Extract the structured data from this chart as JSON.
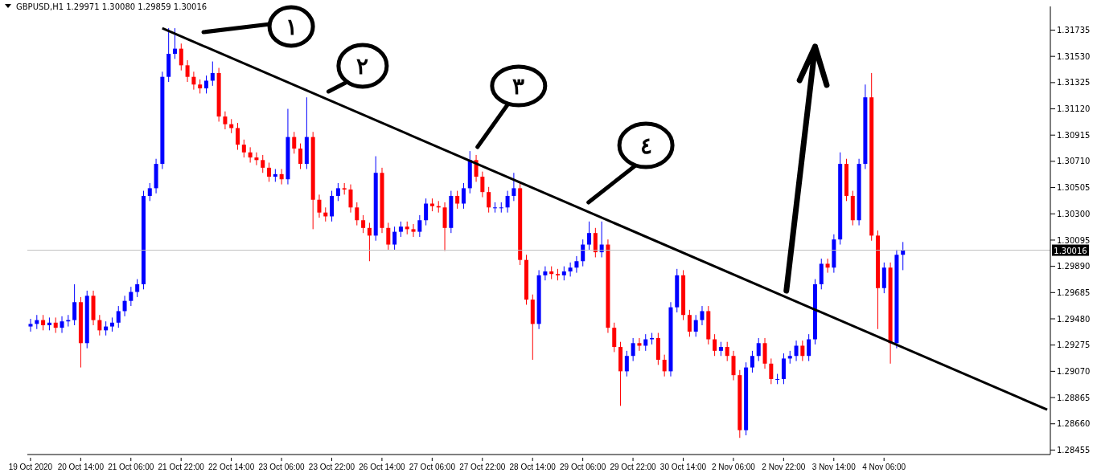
{
  "chart_data": {
    "type": "candlestick",
    "title": "GBPUSD,H1 1.29971 1.30080 1.29859 1.30016",
    "categories": [
      "19 Oct 2020",
      null,
      null,
      null,
      null,
      null,
      null,
      null,
      "20 Oct 14:00",
      null,
      null,
      null,
      null,
      null,
      null,
      null,
      "21 Oct 06:00",
      null,
      null,
      null,
      null,
      null,
      null,
      null,
      "21 Oct 22:00",
      null,
      null,
      null,
      null,
      null,
      null,
      null,
      "22 Oct 14:00",
      null,
      null,
      null,
      null,
      null,
      null,
      null,
      "23 Oct 06:00",
      null,
      null,
      null,
      null,
      null,
      null,
      null,
      "23 Oct 22:00",
      null,
      null,
      null,
      null,
      null,
      null,
      null,
      "26 Oct 14:00",
      null,
      null,
      null,
      null,
      null,
      null,
      null,
      "27 Oct 06:00",
      null,
      null,
      null,
      null,
      null,
      null,
      null,
      "27 Oct 22:00",
      null,
      null,
      null,
      null,
      null,
      null,
      null,
      "28 Oct 14:00",
      null,
      null,
      null,
      null,
      null,
      null,
      null,
      "29 Oct 06:00",
      null,
      null,
      null,
      null,
      null,
      null,
      null,
      "29 Oct 22:00",
      null,
      null,
      null,
      null,
      null,
      null,
      null,
      "30 Oct 14:00",
      null,
      null,
      null,
      null,
      null,
      null,
      null,
      "2 Nov 06:00",
      null,
      null,
      null,
      null,
      null,
      null,
      null,
      "2 Nov 22:00",
      null,
      null,
      null,
      null,
      null,
      null,
      null,
      "3 Nov 14:00",
      null,
      null,
      null,
      null,
      null,
      null,
      null,
      "4 Nov 06:00",
      null,
      null,
      null,
      null,
      null,
      null,
      null,
      null,
      null,
      null,
      null,
      null,
      null,
      null,
      null,
      null,
      null,
      null,
      null,
      null,
      null,
      null,
      null,
      null,
      null,
      null
    ],
    "ohlc": [
      [
        1.2942,
        1.2948,
        1.2938,
        1.2944
      ],
      [
        1.2944,
        1.2951,
        1.294,
        1.2947
      ],
      [
        1.2947,
        1.2951,
        1.2939,
        1.2943
      ],
      [
        1.2943,
        1.2949,
        1.2939,
        1.2945
      ],
      [
        1.2945,
        1.2949,
        1.2937,
        1.2941
      ],
      [
        1.2941,
        1.295,
        1.2937,
        1.2946
      ],
      [
        1.2946,
        1.2951,
        1.2942,
        1.2947
      ],
      [
        1.2947,
        1.2975,
        1.2943,
        1.2961
      ],
      [
        1.2961,
        1.2965,
        1.291,
        1.2929
      ],
      [
        1.2929,
        1.297,
        1.2925,
        1.2966
      ],
      [
        1.2966,
        1.297,
        1.2943,
        1.2947
      ],
      [
        1.2947,
        1.2951,
        1.2935,
        1.2939
      ],
      [
        1.2939,
        1.2946,
        1.2935,
        1.2942
      ],
      [
        1.2942,
        1.2949,
        1.2938,
        1.2945
      ],
      [
        1.2945,
        1.2958,
        1.2941,
        1.2954
      ],
      [
        1.2954,
        1.2966,
        1.295,
        1.2962
      ],
      [
        1.2962,
        1.2973,
        1.2958,
        1.2969
      ],
      [
        1.2969,
        1.2979,
        1.2965,
        1.2975
      ],
      [
        1.2975,
        1.3048,
        1.2971,
        1.3044
      ],
      [
        1.3044,
        1.3054,
        1.304,
        1.305
      ],
      [
        1.305,
        1.3073,
        1.3046,
        1.3069
      ],
      [
        1.3069,
        1.3141,
        1.3065,
        1.3137
      ],
      [
        1.3137,
        1.3175,
        1.3133,
        1.3155
      ],
      [
        1.3155,
        1.3175,
        1.3151,
        1.3159
      ],
      [
        1.3159,
        1.3163,
        1.3142,
        1.3146
      ],
      [
        1.3146,
        1.315,
        1.3133,
        1.3137
      ],
      [
        1.3137,
        1.3141,
        1.3127,
        1.3131
      ],
      [
        1.3131,
        1.3135,
        1.3124,
        1.3128
      ],
      [
        1.3128,
        1.3138,
        1.3124,
        1.3134
      ],
      [
        1.3134,
        1.3149,
        1.313,
        1.314
      ],
      [
        1.314,
        1.3144,
        1.3102,
        1.3106
      ],
      [
        1.3106,
        1.311,
        1.3096,
        1.31
      ],
      [
        1.31,
        1.3104,
        1.3093,
        1.3097
      ],
      [
        1.3097,
        1.3101,
        1.308,
        1.3084
      ],
      [
        1.3084,
        1.3088,
        1.3074,
        1.3078
      ],
      [
        1.3078,
        1.3082,
        1.307,
        1.3074
      ],
      [
        1.3074,
        1.3078,
        1.3068,
        1.3072
      ],
      [
        1.3072,
        1.3076,
        1.3062,
        1.3066
      ],
      [
        1.3066,
        1.307,
        1.3055,
        1.3059
      ],
      [
        1.3059,
        1.3065,
        1.3055,
        1.3061
      ],
      [
        1.3061,
        1.3065,
        1.3053,
        1.3057
      ],
      [
        1.3057,
        1.3112,
        1.3053,
        1.309
      ],
      [
        1.309,
        1.3094,
        1.3077,
        1.3081
      ],
      [
        1.3081,
        1.3085,
        1.3065,
        1.3069
      ],
      [
        1.3069,
        1.3121,
        1.3065,
        1.309
      ],
      [
        1.309,
        1.3094,
        1.3018,
        1.3041
      ],
      [
        1.3041,
        1.3045,
        1.3027,
        1.3031
      ],
      [
        1.3031,
        1.3035,
        1.3024,
        1.3028
      ],
      [
        1.3028,
        1.3048,
        1.3024,
        1.3044
      ],
      [
        1.3044,
        1.3054,
        1.304,
        1.305
      ],
      [
        1.305,
        1.3054,
        1.3045,
        1.3049
      ],
      [
        1.3049,
        1.3053,
        1.3031,
        1.3035
      ],
      [
        1.3035,
        1.3039,
        1.3021,
        1.3025
      ],
      [
        1.3025,
        1.3029,
        1.3015,
        1.3019
      ],
      [
        1.3019,
        1.3023,
        1.2993,
        1.3013
      ],
      [
        1.3013,
        1.3075,
        1.3009,
        1.3062
      ],
      [
        1.3062,
        1.3066,
        1.3015,
        1.3019
      ],
      [
        1.3019,
        1.3023,
        1.3002,
        1.3006
      ],
      [
        1.3006,
        1.302,
        1.3002,
        1.3016
      ],
      [
        1.3016,
        1.3024,
        1.3012,
        1.302
      ],
      [
        1.302,
        1.3024,
        1.3014,
        1.3018
      ],
      [
        1.3018,
        1.3022,
        1.3012,
        1.3016
      ],
      [
        1.3016,
        1.3029,
        1.3012,
        1.3025
      ],
      [
        1.3025,
        1.3042,
        1.3021,
        1.3038
      ],
      [
        1.3038,
        1.3042,
        1.3032,
        1.3036
      ],
      [
        1.3036,
        1.304,
        1.3031,
        1.3035
      ],
      [
        1.3035,
        1.3039,
        1.3001,
        1.3019
      ],
      [
        1.3019,
        1.3048,
        1.3015,
        1.3044
      ],
      [
        1.3044,
        1.3048,
        1.3034,
        1.3038
      ],
      [
        1.3038,
        1.3054,
        1.3034,
        1.305
      ],
      [
        1.305,
        1.3079,
        1.3046,
        1.3072
      ],
      [
        1.3072,
        1.3076,
        1.3055,
        1.3059
      ],
      [
        1.3059,
        1.3063,
        1.3043,
        1.3047
      ],
      [
        1.3047,
        1.3051,
        1.3031,
        1.3035
      ],
      [
        1.3035,
        1.3039,
        1.3031,
        1.3035
      ],
      [
        1.3035,
        1.3039,
        1.3031,
        1.3035
      ],
      [
        1.3035,
        1.3048,
        1.3031,
        1.3044
      ],
      [
        1.3044,
        1.3062,
        1.304,
        1.305
      ],
      [
        1.305,
        1.3054,
        1.299,
        1.2994
      ],
      [
        1.2994,
        1.2998,
        1.2959,
        1.2963
      ],
      [
        1.2963,
        1.2967,
        1.2916,
        1.2944
      ],
      [
        1.2944,
        1.2986,
        1.294,
        1.2982
      ],
      [
        1.2982,
        1.2989,
        1.2978,
        1.2985
      ],
      [
        1.2985,
        1.2989,
        1.2979,
        1.2983
      ],
      [
        1.2983,
        1.2987,
        1.2978,
        1.2982
      ],
      [
        1.2982,
        1.2989,
        1.2978,
        1.2985
      ],
      [
        1.2985,
        1.2992,
        1.2981,
        1.2988
      ],
      [
        1.2988,
        1.2997,
        1.2984,
        1.2993
      ],
      [
        1.2993,
        1.301,
        1.2989,
        1.3006
      ],
      [
        1.3006,
        1.3024,
        1.3002,
        1.3015
      ],
      [
        1.3015,
        1.3019,
        1.2996,
        1.3
      ],
      [
        1.3,
        1.3024,
        1.2996,
        1.3006
      ],
      [
        1.3006,
        1.301,
        1.2937,
        1.2941
      ],
      [
        1.2941,
        1.2945,
        1.2922,
        1.2926
      ],
      [
        1.2926,
        1.293,
        1.288,
        1.2907
      ],
      [
        1.2907,
        1.2923,
        1.2903,
        1.2919
      ],
      [
        1.2919,
        1.2933,
        1.2915,
        1.2929
      ],
      [
        1.2929,
        1.2933,
        1.2923,
        1.2927
      ],
      [
        1.2927,
        1.2936,
        1.2923,
        1.2932
      ],
      [
        1.2932,
        1.2937,
        1.2928,
        1.2933
      ],
      [
        1.2933,
        1.2937,
        1.2912,
        1.2916
      ],
      [
        1.2916,
        1.292,
        1.2903,
        1.2907
      ],
      [
        1.2907,
        1.2961,
        1.2903,
        1.2957
      ],
      [
        1.2957,
        1.2987,
        1.2953,
        1.2982
      ],
      [
        1.2982,
        1.2986,
        1.2947,
        1.2951
      ],
      [
        1.2951,
        1.2955,
        1.2934,
        1.2938
      ],
      [
        1.2938,
        1.2951,
        1.2934,
        1.2947
      ],
      [
        1.2947,
        1.2958,
        1.2943,
        1.2954
      ],
      [
        1.2954,
        1.2958,
        1.2928,
        1.2932
      ],
      [
        1.2932,
        1.2936,
        1.2919,
        1.2923
      ],
      [
        1.2923,
        1.293,
        1.2919,
        1.2926
      ],
      [
        1.2926,
        1.293,
        1.2915,
        1.2919
      ],
      [
        1.2919,
        1.2923,
        1.29,
        1.2904
      ],
      [
        1.2904,
        1.2908,
        1.2855,
        1.2861
      ],
      [
        1.2861,
        1.2914,
        1.2857,
        1.291
      ],
      [
        1.291,
        1.2923,
        1.2906,
        1.2919
      ],
      [
        1.2919,
        1.2933,
        1.2915,
        1.2929
      ],
      [
        1.2929,
        1.2933,
        1.2909,
        1.2913
      ],
      [
        1.2913,
        1.2917,
        1.2897,
        1.2901
      ],
      [
        1.2901,
        1.2905,
        1.2897,
        1.2901
      ],
      [
        1.2901,
        1.2921,
        1.2897,
        1.2917
      ],
      [
        1.2917,
        1.2923,
        1.2913,
        1.2919
      ],
      [
        1.2919,
        1.2931,
        1.2915,
        1.2927
      ],
      [
        1.2927,
        1.2931,
        1.2915,
        1.2919
      ],
      [
        1.2919,
        1.2936,
        1.2915,
        1.2932
      ],
      [
        1.2932,
        1.2979,
        1.2928,
        1.2975
      ],
      [
        1.2975,
        1.2995,
        1.2971,
        1.2991
      ],
      [
        1.2991,
        1.2995,
        1.2984,
        1.2988
      ],
      [
        1.2988,
        1.3014,
        1.2984,
        1.301
      ],
      [
        1.301,
        1.3078,
        1.3006,
        1.3069
      ],
      [
        1.3069,
        1.3073,
        1.304,
        1.3044
      ],
      [
        1.3044,
        1.3048,
        1.3021,
        1.3025
      ],
      [
        1.3025,
        1.3073,
        1.3021,
        1.3069
      ],
      [
        1.3069,
        1.3131,
        1.3065,
        1.3121
      ],
      [
        1.3121,
        1.314,
        1.3009,
        1.3013
      ],
      [
        1.3013,
        1.3017,
        1.294,
        1.2972
      ],
      [
        1.2972,
        1.2992,
        1.2968,
        1.2988
      ],
      [
        1.2988,
        1.2992,
        1.2913,
        1.2929
      ],
      [
        1.2929,
        1.3002,
        1.2925,
        1.2998
      ],
      [
        1.2998,
        1.3008,
        1.2986,
        1.30016
      ],
      null,
      null,
      null,
      null,
      null,
      null,
      null,
      null,
      null,
      null,
      null,
      null,
      null,
      null,
      null,
      null,
      null,
      null,
      null,
      null,
      null,
      null,
      null
    ],
    "colors": [
      "#0000ff",
      "#0000ff",
      "#ff0000",
      "#0000ff",
      "#ff0000",
      "#0000ff",
      "#0000ff",
      "#0000ff",
      "#ff0000",
      "#0000ff",
      "#ff0000",
      "#ff0000",
      "#0000ff",
      "#0000ff",
      "#0000ff",
      "#0000ff",
      "#0000ff",
      "#0000ff",
      "#0000ff",
      "#0000ff",
      "#0000ff",
      "#0000ff",
      "#0000ff",
      "#0000ff",
      "#ff0000",
      "#ff0000",
      "#ff0000",
      "#ff0000",
      "#0000ff",
      "#0000ff",
      "#ff0000",
      "#ff0000",
      "#ff0000",
      "#ff0000",
      "#ff0000",
      "#ff0000",
      "#ff0000",
      "#ff0000",
      "#ff0000",
      "#0000ff",
      "#ff0000",
      "#0000ff",
      "#ff0000",
      "#ff0000",
      "#0000ff",
      "#ff0000",
      "#ff0000",
      "#ff0000",
      "#0000ff",
      "#0000ff",
      "#ff0000",
      "#ff0000",
      "#ff0000",
      "#ff0000",
      "#ff0000",
      "#0000ff",
      "#ff0000",
      "#ff0000",
      "#0000ff",
      "#0000ff",
      "#ff0000",
      "#ff0000",
      "#0000ff",
      "#0000ff",
      "#ff0000",
      "#ff0000",
      "#ff0000",
      "#0000ff",
      "#ff0000",
      "#0000ff",
      "#0000ff",
      "#ff0000",
      "#ff0000",
      "#ff0000",
      "#0000ff",
      "#0000ff",
      "#0000ff",
      "#0000ff",
      "#ff0000",
      "#ff0000",
      "#ff0000",
      "#0000ff",
      "#0000ff",
      "#ff0000",
      "#ff0000",
      "#0000ff",
      "#0000ff",
      "#0000ff",
      "#0000ff",
      "#0000ff",
      "#ff0000",
      "#0000ff",
      "#ff0000",
      "#ff0000",
      "#ff0000",
      "#0000ff",
      "#0000ff",
      "#ff0000",
      "#0000ff",
      "#0000ff",
      "#ff0000",
      "#ff0000",
      "#0000ff",
      "#0000ff",
      "#ff0000",
      "#ff0000",
      "#0000ff",
      "#0000ff",
      "#ff0000",
      "#ff0000",
      "#0000ff",
      "#ff0000",
      "#ff0000",
      "#ff0000",
      "#0000ff",
      "#0000ff",
      "#0000ff",
      "#ff0000",
      "#ff0000",
      "#0000ff",
      "#0000ff",
      "#0000ff",
      "#0000ff",
      "#ff0000",
      "#0000ff",
      "#0000ff",
      "#0000ff",
      "#ff0000",
      "#0000ff",
      "#0000ff",
      "#ff0000",
      "#ff0000",
      "#0000ff",
      "#0000ff",
      "#ff0000",
      "#ff0000",
      "#0000ff",
      "#ff0000",
      "#0000ff",
      "#0000ff",
      null,
      null,
      null,
      null,
      null,
      null,
      null,
      null,
      null,
      null,
      null,
      null,
      null,
      null,
      null,
      null,
      null,
      null,
      null,
      null,
      null,
      null,
      null
    ],
    "series": [
      {
        "type": "line",
        "color": "#000000",
        "values": [
          null,
          null,
          null,
          null,
          null,
          null,
          null,
          null,
          null,
          null,
          null,
          null,
          null,
          null,
          null,
          null,
          null,
          null,
          null,
          null,
          null,
          1.3175,
          null,
          null,
          null,
          null,
          null,
          null,
          null,
          null,
          null,
          null,
          null,
          null,
          null,
          null,
          null,
          null,
          null,
          null,
          null,
          null,
          null,
          null,
          null,
          null,
          null,
          null,
          null,
          null,
          null,
          null,
          null,
          null,
          null,
          null,
          null,
          null,
          null,
          null,
          null,
          null,
          null,
          null,
          null,
          null,
          null,
          null,
          null,
          null,
          null,
          null,
          null,
          null,
          null,
          null,
          null,
          null,
          null,
          null,
          null,
          null,
          null,
          null,
          null,
          null,
          null,
          null,
          null,
          null,
          null,
          null,
          null,
          null,
          null,
          null,
          null,
          null,
          null,
          null,
          null,
          null,
          null,
          null,
          null,
          null,
          null,
          null,
          null,
          null,
          null,
          null,
          null,
          null,
          null,
          null,
          null,
          null,
          null,
          null,
          null,
          null,
          null,
          null,
          null,
          null,
          null,
          null,
          null,
          null,
          null,
          null,
          null,
          null,
          null,
          null,
          null,
          null,
          null,
          null,
          null,
          null,
          null,
          null,
          null,
          null,
          null,
          null,
          null,
          null,
          null,
          null,
          null,
          null,
          null,
          null,
          null,
          null,
          null,
          null,
          null,
          null,
          1.2877
        ]
      }
    ],
    "ylim": [
      1.2842,
      1.3192
    ],
    "yticks": [
      1.28455,
      {
        "value": 1.2866,
        "label": "1.28660"
      },
      1.28865,
      {
        "value": 1.2907,
        "label": "1.29070"
      },
      1.29275,
      {
        "value": 1.2948,
        "label": "1.29480"
      },
      1.29685,
      {
        "value": 1.2989,
        "label": "1.29890"
      },
      1.30095,
      {
        "value": 1.303,
        "label": "1.30300"
      },
      1.30505,
      {
        "value": 1.3071,
        "label": "1.30710"
      },
      1.30915,
      {
        "value": 1.3112,
        "label": "1.31120"
      },
      1.31325,
      {
        "value": 1.3153,
        "label": "1.31530"
      },
      1.31735
    ],
    "ref_lines": [
      {
        "axis": "y",
        "value": 1.30016,
        "label": "1.30016",
        "color": "#c0c0c0"
      }
    ],
    "annotations": [
      "١",
      "٢",
      "٣",
      "٤"
    ],
    "grid": false,
    "legend": false
  }
}
